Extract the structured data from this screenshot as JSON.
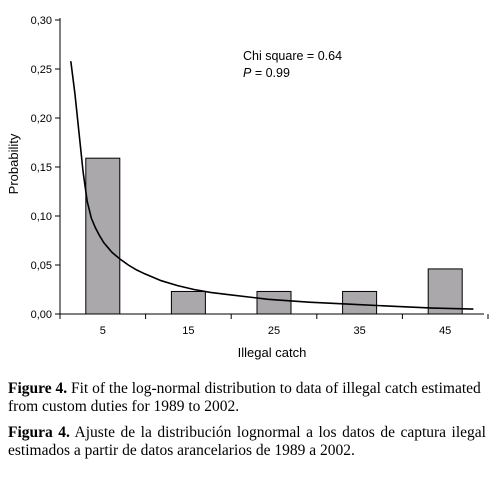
{
  "chart_data": {
    "type": "bar",
    "categories": [
      "5",
      "15",
      "25",
      "35",
      "45"
    ],
    "values": [
      0.159,
      0.023,
      0.023,
      0.023,
      0.046
    ],
    "ylim": [
      0,
      0.3
    ],
    "yticks": [
      "0,00",
      "0,05",
      "0,10",
      "0,15",
      "0,20",
      "0,25",
      "0,30"
    ],
    "ylabel": "Probability",
    "xlabel": "Illegal catch",
    "fit_curve": {
      "x": [
        1,
        1.5,
        2,
        2.5,
        3,
        3.5,
        4,
        4.5,
        5,
        6,
        7,
        8,
        9,
        10,
        12,
        14,
        16,
        18,
        20,
        25,
        30,
        35,
        40,
        45,
        50
      ],
      "y": [
        0.258,
        0.225,
        0.185,
        0.145,
        0.115,
        0.098,
        0.088,
        0.08,
        0.073,
        0.063,
        0.056,
        0.05,
        0.045,
        0.041,
        0.034,
        0.029,
        0.025,
        0.022,
        0.02,
        0.015,
        0.012,
        0.01,
        0.008,
        0.006,
        0.005
      ]
    },
    "annotation": {
      "line1": "Chi square = 0.64",
      "line2_label": "P",
      "line2_value": " = 0.99"
    },
    "bar_color": "#aaa8ab",
    "grid": false
  },
  "caption_en": {
    "label": "Figure 4.",
    "text": " Fit of the log-normal distribution to data of illegal catch estimated from custom duties for 1989 to 2002."
  },
  "caption_es": {
    "label": "Figura 4.",
    "text": " Ajuste de la distribución lognormal a los datos de captura ilegal estimados a partir de datos arancelarios de 1989 a 2002."
  }
}
